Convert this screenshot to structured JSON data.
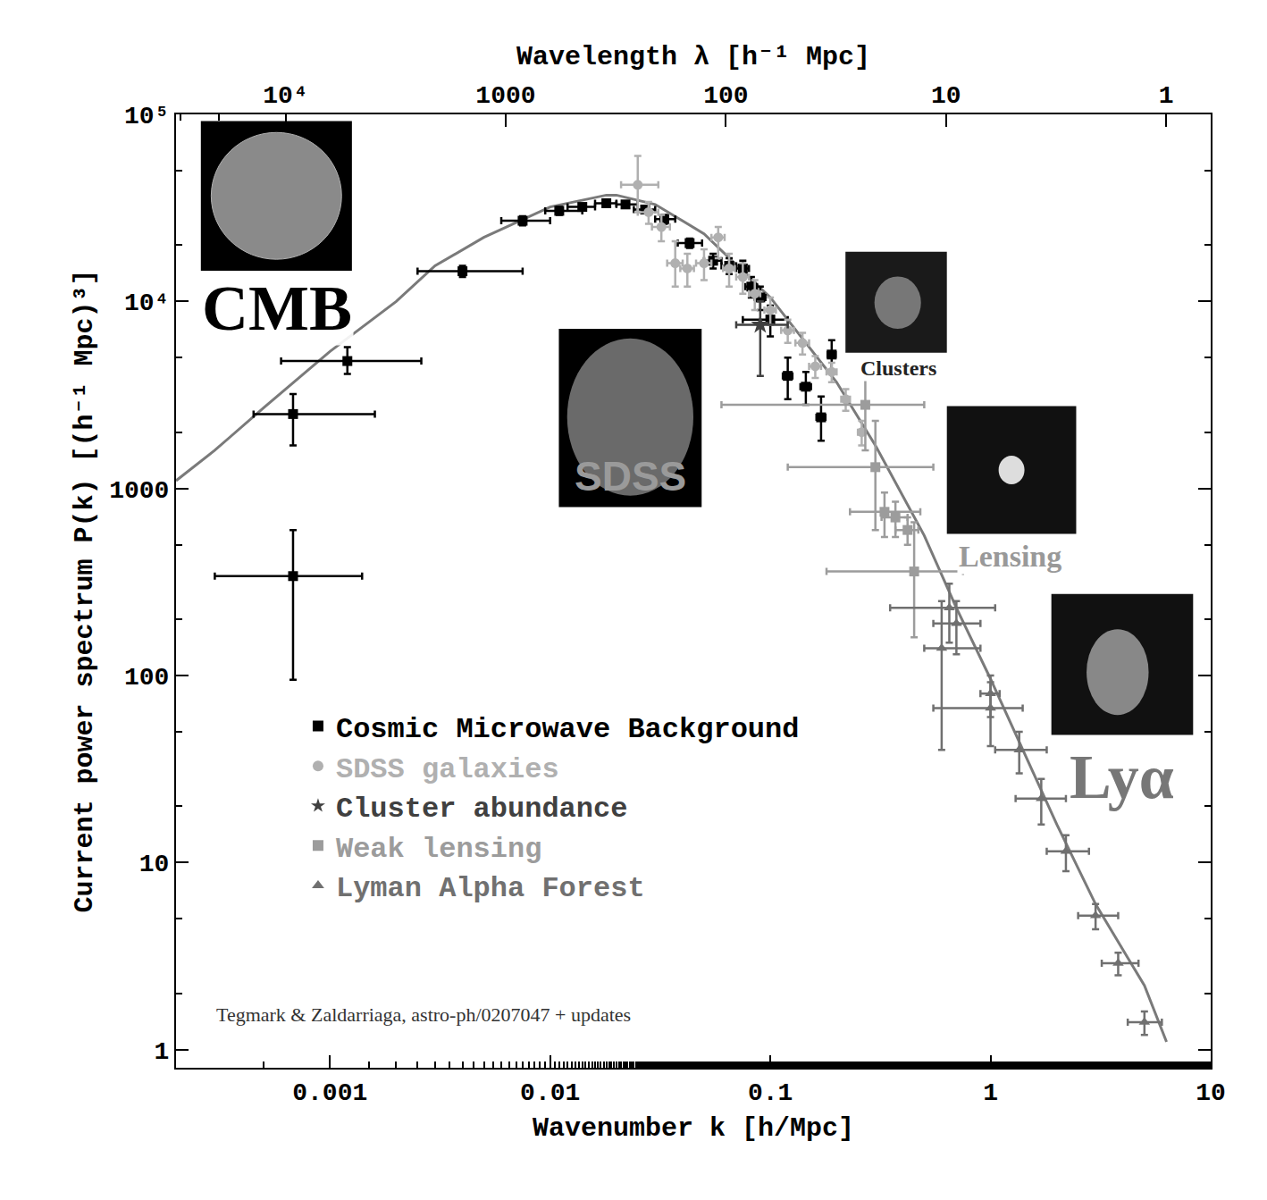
{
  "chart_data": {
    "type": "scatter",
    "log": true,
    "grid": false,
    "legend": "lower left",
    "x_label": "Wavenumber k [h/Mpc]",
    "x2_label": "Wavelength λ [h⁻¹ Mpc]",
    "y_label": "Current power spectrum P(k) [(h⁻¹ Mpc)³]",
    "xlim": [
      0.0002,
      10
    ],
    "xticks": [
      0.001,
      0.01,
      0.1,
      1,
      10
    ],
    "x2lim": [
      31416,
      0.628
    ],
    "x2ticks": [
      {
        "value": 10000,
        "label": "10⁴"
      },
      1000,
      100,
      10,
      1
    ],
    "ylim": [
      0.8,
      100000
    ],
    "yticks": [
      1,
      10,
      100,
      1000,
      {
        "value": 10000,
        "label": "10⁴"
      },
      {
        "value": 100000,
        "label": "10⁵"
      }
    ],
    "annotations": [
      "CMB",
      "SDSS",
      "Clusters",
      "Lensing",
      "Lyα",
      "Tegmark & Zaldarriaga, astro-ph/0207047 + updates"
    ],
    "series": [
      {
        "type": "line",
        "color": "#7a7a7a",
        "line_style": "solid",
        "x": [
          0.0002,
          0.0003,
          0.0005,
          0.001,
          0.002,
          0.003,
          0.005,
          0.01,
          0.018,
          0.02,
          0.03,
          0.05,
          0.1,
          0.2,
          0.3,
          0.5,
          0.7,
          1,
          2,
          3,
          5,
          6.3
        ],
        "values": [
          1100,
          1600,
          2700,
          5400,
          10000,
          15500,
          22000,
          32000,
          37000,
          37000,
          33000,
          23000,
          10500,
          3700,
          1700,
          560,
          230,
          96,
          16,
          6,
          2.2,
          1.1
        ]
      },
      {
        "name": "Cosmic Microwave Background",
        "color": "#000000",
        "marker": "square",
        "x": [
          0.00068,
          0.00068,
          0.0012,
          0.004,
          0.0075,
          0.011,
          0.014,
          0.018,
          0.022,
          0.027,
          0.033,
          0.043,
          0.055,
          0.065,
          0.075,
          0.082,
          0.09,
          0.1,
          0.12,
          0.145,
          0.17,
          0.19
        ],
        "values": [
          340,
          2500,
          4800,
          14500,
          27000,
          30500,
          32000,
          33500,
          33000,
          31000,
          27500,
          20500,
          16500,
          15500,
          15000,
          12000,
          10500,
          8000,
          4000,
          3500,
          2400,
          5200
        ],
        "x_err_minus": [
          0.00038,
          0.00023,
          0.0006,
          0.0015,
          0.0015,
          0.0015,
          0.002,
          0.002,
          0.002,
          0.003,
          0.003,
          0.005,
          0.005,
          0.005,
          0.005,
          0.005,
          0.005,
          0.025,
          0.006,
          0.008,
          0.008,
          0.008
        ],
        "x_err_plus": [
          0.00072,
          0.00092,
          0.0014,
          0.0035,
          0.0025,
          0.003,
          0.002,
          0.002,
          0.003,
          0.003,
          0.004,
          0.006,
          0.005,
          0.005,
          0.005,
          0.005,
          0.005,
          0.02,
          0.006,
          0.008,
          0.008,
          0.008
        ],
        "y_err_minus": [
          245,
          800,
          700,
          1000,
          1500,
          1500,
          1200,
          1200,
          1200,
          1200,
          1500,
          1200,
          1500,
          1500,
          1500,
          1500,
          1500,
          1500,
          1000,
          700,
          600,
          1000
        ],
        "y_err_plus": [
          260,
          700,
          900,
          1000,
          1500,
          1500,
          1200,
          1200,
          1200,
          1200,
          1500,
          1200,
          1500,
          1500,
          1500,
          1500,
          1500,
          1500,
          1000,
          700,
          700,
          1000
        ]
      },
      {
        "name": "SDSS galaxies",
        "color": "#b0b0b0",
        "marker": "circle",
        "x": [
          0.025,
          0.028,
          0.032,
          0.037,
          0.042,
          0.05,
          0.058,
          0.065,
          0.075,
          0.085,
          0.1,
          0.12,
          0.14,
          0.16,
          0.19,
          0.22,
          0.26
        ],
        "values": [
          42000,
          30000,
          25000,
          16000,
          15000,
          16000,
          22000,
          15000,
          13500,
          11000,
          9000,
          7000,
          6000,
          4500,
          4200,
          3000,
          2000
        ],
        "x_err_minus": [
          0.004,
          0.003,
          0.003,
          0.003,
          0.003,
          0.004,
          0.004,
          0.004,
          0.005,
          0.005,
          0.006,
          0.008,
          0.01,
          0.01,
          0.01,
          0.01,
          0.01
        ],
        "x_err_plus": [
          0.006,
          0.003,
          0.003,
          0.003,
          0.003,
          0.004,
          0.004,
          0.004,
          0.005,
          0.005,
          0.006,
          0.008,
          0.01,
          0.01,
          0.01,
          0.01,
          0.01
        ],
        "y_err_minus": [
          12000,
          4000,
          4000,
          4000,
          3000,
          3000,
          5000,
          3000,
          2500,
          2000,
          1500,
          1000,
          800,
          600,
          500,
          400,
          300
        ],
        "y_err_plus": [
          18000,
          4000,
          4000,
          5000,
          3000,
          3000,
          3000,
          3000,
          2500,
          2000,
          1500,
          1000,
          800,
          600,
          500,
          400,
          300
        ]
      },
      {
        "name": "Cluster abundance",
        "color": "#404040",
        "marker": "star",
        "x": [
          0.09
        ],
        "values": [
          7500
        ],
        "x_err_minus": [
          0.02
        ],
        "x_err_plus": [
          0.03
        ],
        "y_err_minus": [
          3500
        ],
        "y_err_plus": [
          2500
        ]
      },
      {
        "name": "Weak lensing",
        "color": "#9c9c9c",
        "marker": "square",
        "x": [
          0.27,
          0.3,
          0.33,
          0.37,
          0.42,
          0.45
        ],
        "values": [
          2800,
          1300,
          750,
          700,
          600,
          360
        ],
        "x_err_minus": [
          0.21,
          0.18,
          0.1,
          0.05,
          0.05,
          0.27
        ],
        "x_err_plus": [
          0.23,
          0.25,
          0.15,
          0.05,
          0.05,
          0.3
        ],
        "y_err_minus": [
          1200,
          700,
          200,
          150,
          100,
          200
        ],
        "y_err_plus": [
          1500,
          1000,
          200,
          150,
          100,
          300
        ]
      },
      {
        "name": "Lyman Alpha Forest",
        "color": "#707070",
        "marker": "triangle",
        "x": [
          0.6,
          0.65,
          0.7,
          1.0,
          1.0,
          1.35,
          1.7,
          2.2,
          3,
          3.8,
          5
        ],
        "values": [
          140,
          230,
          190,
          67,
          80,
          40,
          22,
          11.5,
          5.2,
          2.9,
          1.4
        ],
        "x_err_minus": [
          0.1,
          0.3,
          0.15,
          0.45,
          0.1,
          0.3,
          0.4,
          0.4,
          0.5,
          0.6,
          0.8
        ],
        "x_err_plus": [
          0.3,
          0.4,
          0.2,
          0.4,
          0.1,
          0.45,
          0.5,
          0.6,
          0.8,
          0.9,
          1.0
        ],
        "y_err_minus": [
          100,
          80,
          60,
          25,
          20,
          10,
          6,
          2.5,
          0.8,
          0.4,
          0.2
        ],
        "y_err_plus": [
          110,
          80,
          60,
          25,
          20,
          10,
          6,
          2.5,
          0.8,
          0.4,
          0.2
        ]
      }
    ]
  }
}
